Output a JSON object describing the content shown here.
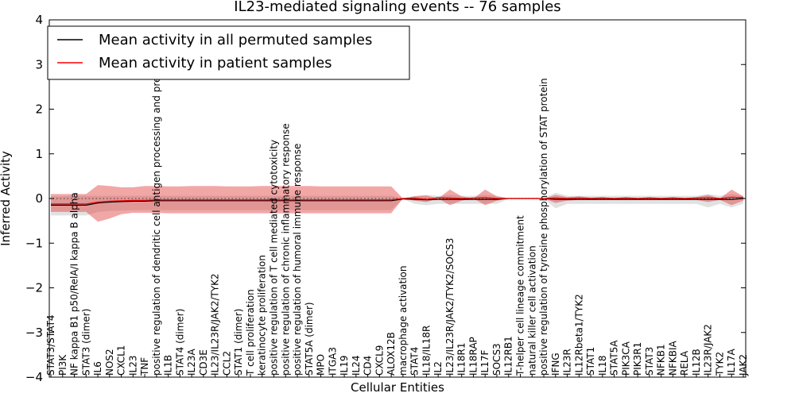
{
  "chart_data": {
    "type": "line",
    "title": "IL23-mediated signaling events -- 76 samples",
    "xlabel": "Cellular Entities",
    "ylabel": "Inferred Activity",
    "ylim": [
      -4,
      4
    ],
    "yticks": [
      -4,
      -3,
      -2,
      -1,
      0,
      1,
      2,
      3,
      4
    ],
    "ytick_labels": [
      "−4",
      "−3",
      "−2",
      "−1",
      "0",
      "1",
      "2",
      "3",
      "4"
    ],
    "grid": false,
    "legend_position": "top-left",
    "categories": [
      "STAT3/STAT4",
      "PI3K",
      "NF kappa B1 p50/RelA/I kappa B alpha",
      "STAT3 (dimer)",
      "IL6",
      "NOS2",
      "CXCL1",
      "IL23",
      "TNF",
      "positive regulation of dendritic cell antigen processing and presentation",
      "IL1B",
      "STAT4 (dimer)",
      "IL23A",
      "CD3E",
      "IL23/IL23R/JAK2/TYK2",
      "CCL2",
      "STAT1 (dimer)",
      "T cell proliferation",
      "keratinocyte proliferation",
      "positive regulation of T cell mediated cytotoxicity",
      "positive regulation of chronic inflammatory response",
      "positive regulation of humoral immune response",
      "STAT5A (dimer)",
      "MPO",
      "ITGA3",
      "IL19",
      "IL24",
      "CD4",
      "CXCL9",
      "ALOX12B",
      "macrophage activation",
      "STAT4",
      "IL18/IL18R",
      "IL2",
      "IL23/IL23R/JAK2/TYK2/SOCS3",
      "IL18R1",
      "IL18RAP",
      "IL17F",
      "SOCS3",
      "IL12RB1",
      "T-helper cell lineage commitment",
      "natural killer cell activation",
      "positive regulation of tyrosine phosphorylation of STAT protein",
      "IFNG",
      "IL23R",
      "IL12Rbeta1/TYK2",
      "STAT1",
      "IL18",
      "STAT5A",
      "PIK3CA",
      "PIK3R1",
      "STAT3",
      "NFKB1",
      "NFKBIA",
      "RELA",
      "IL12B",
      "IL23R/JAK2",
      "TYK2",
      "IL17A",
      "JAK2"
    ],
    "series": [
      {
        "name": "Mean activity in all permuted samples",
        "color": "#000000",
        "values": [
          -0.15,
          -0.15,
          -0.15,
          -0.15,
          -0.1,
          -0.08,
          -0.07,
          -0.06,
          -0.06,
          -0.05,
          -0.05,
          -0.05,
          -0.05,
          -0.05,
          -0.05,
          -0.05,
          -0.05,
          -0.05,
          -0.05,
          -0.05,
          -0.05,
          -0.05,
          -0.05,
          -0.05,
          -0.05,
          -0.05,
          -0.05,
          -0.05,
          -0.05,
          -0.05,
          -0.01,
          -0.02,
          -0.03,
          -0.02,
          -0.02,
          -0.02,
          -0.02,
          -0.02,
          -0.02,
          0.0,
          0.0,
          0.0,
          0.0,
          -0.02,
          -0.02,
          -0.02,
          -0.02,
          -0.02,
          -0.02,
          -0.02,
          -0.02,
          -0.02,
          -0.02,
          -0.02,
          -0.02,
          -0.02,
          -0.02,
          -0.02,
          -0.02,
          0.0
        ],
        "band_upper": [
          0.05,
          0.05,
          0.06,
          0.06,
          0.06,
          0.06,
          0.06,
          0.06,
          0.06,
          0.06,
          0.06,
          0.06,
          0.06,
          0.06,
          0.06,
          0.06,
          0.06,
          0.06,
          0.06,
          0.06,
          0.06,
          0.06,
          0.06,
          0.06,
          0.06,
          0.06,
          0.06,
          0.06,
          0.06,
          0.06,
          0.01,
          0.06,
          0.08,
          0.06,
          0.08,
          0.06,
          0.06,
          0.08,
          0.06,
          0.01,
          0.01,
          0.01,
          0.01,
          0.13,
          0.06,
          0.06,
          0.06,
          0.06,
          0.06,
          0.06,
          0.06,
          0.06,
          0.06,
          0.06,
          0.06,
          0.06,
          0.1,
          0.06,
          0.1,
          0.06
        ],
        "band_lower": [
          -0.38,
          -0.38,
          -0.38,
          -0.38,
          -0.3,
          -0.28,
          -0.27,
          -0.26,
          -0.26,
          -0.26,
          -0.26,
          -0.26,
          -0.26,
          -0.26,
          -0.26,
          -0.26,
          -0.26,
          -0.26,
          -0.26,
          -0.26,
          -0.26,
          -0.26,
          -0.26,
          -0.26,
          -0.26,
          -0.26,
          -0.26,
          -0.26,
          -0.26,
          -0.26,
          -0.01,
          -0.12,
          -0.15,
          -0.12,
          -0.12,
          -0.12,
          -0.12,
          -0.12,
          -0.12,
          -0.01,
          -0.01,
          -0.01,
          -0.01,
          -0.22,
          -0.12,
          -0.12,
          -0.12,
          -0.12,
          -0.12,
          -0.12,
          -0.12,
          -0.12,
          -0.12,
          -0.12,
          -0.12,
          -0.12,
          -0.2,
          -0.12,
          -0.2,
          -0.12
        ]
      },
      {
        "name": "Mean activity in patient samples",
        "color": "#ff0000",
        "values": [
          -0.12,
          -0.12,
          -0.12,
          -0.12,
          -0.08,
          -0.06,
          -0.05,
          -0.04,
          -0.04,
          -0.03,
          -0.03,
          -0.03,
          -0.03,
          -0.03,
          -0.03,
          -0.03,
          -0.03,
          -0.03,
          -0.03,
          -0.03,
          -0.03,
          -0.03,
          -0.03,
          -0.03,
          -0.03,
          -0.03,
          -0.03,
          -0.03,
          -0.03,
          -0.03,
          0.0,
          0.01,
          -0.02,
          0.02,
          0.01,
          0.0,
          0.01,
          0.02,
          0.0,
          0.0,
          0.0,
          0.0,
          0.0,
          0.01,
          0.0,
          0.01,
          0.0,
          0.01,
          0.0,
          0.01,
          0.0,
          0.01,
          0.0,
          0.01,
          0.0,
          0.01,
          0.02,
          0.0,
          0.03,
          0.02
        ],
        "band_upper": [
          0.1,
          0.1,
          0.1,
          0.1,
          0.3,
          0.28,
          0.25,
          0.25,
          0.28,
          0.28,
          0.27,
          0.27,
          0.28,
          0.28,
          0.28,
          0.27,
          0.27,
          0.27,
          0.28,
          0.28,
          0.28,
          0.28,
          0.28,
          0.27,
          0.27,
          0.27,
          0.27,
          0.27,
          0.27,
          0.27,
          0.0,
          0.05,
          0.07,
          0.0,
          0.2,
          0.05,
          0.0,
          0.2,
          0.05,
          0.0,
          0.0,
          0.0,
          0.0,
          0.08,
          0.03,
          0.05,
          0.02,
          0.03,
          0.01,
          0.03,
          0.01,
          0.03,
          0.01,
          0.03,
          0.01,
          0.03,
          0.08,
          0.0,
          0.2,
          0.05
        ],
        "band_lower": [
          -0.3,
          -0.3,
          -0.3,
          -0.3,
          -0.52,
          -0.45,
          -0.35,
          -0.32,
          -0.32,
          -0.32,
          -0.33,
          -0.33,
          -0.33,
          -0.33,
          -0.33,
          -0.33,
          -0.33,
          -0.33,
          -0.33,
          -0.33,
          -0.33,
          -0.33,
          -0.33,
          -0.33,
          -0.33,
          -0.33,
          -0.33,
          -0.33,
          -0.33,
          -0.33,
          0.0,
          -0.05,
          -0.08,
          0.0,
          -0.15,
          -0.05,
          0.0,
          -0.15,
          -0.05,
          0.0,
          0.0,
          0.0,
          0.0,
          -0.1,
          -0.05,
          -0.03,
          -0.02,
          -0.03,
          -0.01,
          -0.03,
          -0.01,
          -0.03,
          -0.01,
          -0.03,
          -0.01,
          -0.03,
          -0.08,
          -0.03,
          -0.15,
          -0.05
        ]
      }
    ],
    "reference_line": {
      "y": 0,
      "style": "dotted"
    }
  }
}
